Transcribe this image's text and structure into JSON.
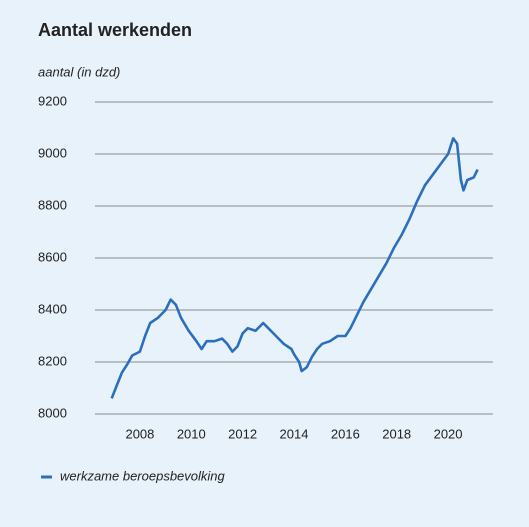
{
  "chart_data": {
    "type": "line",
    "title": "Aantal werkenden",
    "subtitle": "aantal (in dzd)",
    "x": [
      2006.9,
      2007.1,
      2007.3,
      2007.5,
      2007.7,
      2008.0,
      2008.2,
      2008.4,
      2008.7,
      2009.0,
      2009.2,
      2009.4,
      2009.6,
      2009.9,
      2010.2,
      2010.4,
      2010.6,
      2010.9,
      2011.2,
      2011.4,
      2011.6,
      2011.8,
      2012.0,
      2012.2,
      2012.5,
      2012.8,
      2013.0,
      2013.3,
      2013.6,
      2013.9,
      2014.0,
      2014.2,
      2014.3,
      2014.5,
      2014.7,
      2014.9,
      2015.1,
      2015.4,
      2015.7,
      2016.0,
      2016.2,
      2016.4,
      2016.7,
      2017.0,
      2017.3,
      2017.6,
      2017.9,
      2018.2,
      2018.5,
      2018.8,
      2019.1,
      2019.4,
      2019.7,
      2020.0,
      2020.2,
      2020.35,
      2020.5,
      2020.6,
      2020.75,
      2021.0,
      2021.15
    ],
    "series": [
      {
        "name": "werkzame beroepsbevolking",
        "color": "#2c6fbd",
        "values": [
          8060,
          8110,
          8160,
          8190,
          8225,
          8240,
          8300,
          8350,
          8370,
          8400,
          8440,
          8420,
          8370,
          8320,
          8280,
          8250,
          8280,
          8280,
          8290,
          8270,
          8240,
          8260,
          8310,
          8330,
          8320,
          8350,
          8330,
          8300,
          8270,
          8250,
          8230,
          8200,
          8165,
          8180,
          8220,
          8250,
          8270,
          8280,
          8300,
          8300,
          8330,
          8370,
          8430,
          8480,
          8530,
          8580,
          8640,
          8690,
          8750,
          8820,
          8880,
          8920,
          8960,
          9000,
          9060,
          9040,
          8900,
          8860,
          8900,
          8910,
          8940
        ]
      }
    ],
    "xlim": [
      2006.25,
      2021.75
    ],
    "xticks": [
      2008,
      2010,
      2012,
      2014,
      2016,
      2018,
      2020
    ],
    "ylim": [
      8000,
      9200
    ],
    "yticks": [
      8000,
      8200,
      8400,
      8600,
      8800,
      9000,
      9200
    ],
    "grid": true
  }
}
